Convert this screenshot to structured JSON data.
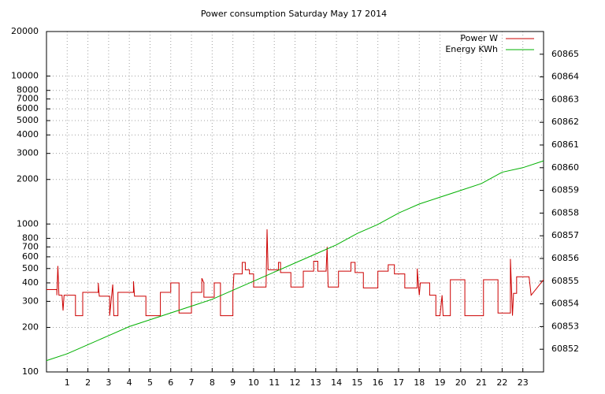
{
  "chart_data": {
    "type": "line",
    "title": "Power consumption Saturday May 17 2014",
    "xlim": [
      0,
      24
    ],
    "xticks": [
      1,
      2,
      3,
      4,
      5,
      6,
      7,
      8,
      9,
      10,
      11,
      12,
      13,
      14,
      15,
      16,
      17,
      18,
      19,
      20,
      21,
      22,
      23
    ],
    "ylim": [
      100,
      20000
    ],
    "ylog": true,
    "yticks": [
      100,
      200,
      300,
      400,
      500,
      600,
      700,
      800,
      1000,
      2000,
      3000,
      4000,
      5000,
      6000,
      7000,
      8000,
      10000,
      20000
    ],
    "y2lim": [
      60851,
      60866
    ],
    "y2ticks": [
      60852,
      60853,
      60854,
      60855,
      60856,
      60857,
      60858,
      60859,
      60860,
      60861,
      60862,
      60863,
      60864,
      60865
    ],
    "grid": true,
    "legend": "top-right",
    "series": [
      {
        "name": "Power W",
        "color": "#cc0000",
        "x": [
          0,
          0.5,
          0.5,
          0.55,
          0.6,
          0.75,
          0.8,
          0.85,
          1.4,
          1.4,
          1.75,
          1.75,
          2.5,
          2.5,
          2.55,
          3.05,
          3.05,
          3.2,
          3.25,
          3.45,
          3.45,
          4.2,
          4.2,
          4.25,
          4.8,
          4.8,
          5.5,
          5.5,
          6.0,
          6.0,
          6.4,
          6.4,
          7.0,
          7.0,
          7.5,
          7.5,
          7.6,
          7.6,
          8.1,
          8.1,
          8.4,
          8.4,
          9.0,
          9.0,
          9.05,
          9.45,
          9.45,
          9.6,
          9.6,
          9.8,
          9.8,
          10.0,
          10.0,
          10.6,
          10.65,
          10.7,
          11.2,
          11.2,
          11.3,
          11.3,
          11.8,
          11.8,
          12.4,
          12.4,
          12.9,
          12.9,
          13.1,
          13.1,
          13.5,
          13.55,
          13.6,
          14.1,
          14.1,
          14.7,
          14.7,
          14.9,
          14.9,
          15.3,
          15.3,
          16.0,
          16.0,
          16.5,
          16.5,
          16.8,
          16.8,
          17.3,
          17.3,
          17.9,
          17.9,
          18.0,
          18.05,
          18.5,
          18.5,
          18.8,
          18.8,
          19.0,
          19.1,
          19.15,
          19.5,
          19.5,
          20.2,
          20.2,
          21.1,
          21.1,
          21.8,
          21.8,
          22.4,
          22.4,
          22.5,
          22.55,
          22.7,
          22.7,
          23.3,
          23.4,
          24
        ],
        "values": [
          360,
          360,
          330,
          520,
          330,
          330,
          260,
          330,
          330,
          240,
          240,
          345,
          345,
          400,
          325,
          325,
          240,
          390,
          240,
          240,
          345,
          345,
          410,
          325,
          325,
          240,
          240,
          345,
          345,
          400,
          400,
          250,
          250,
          345,
          345,
          430,
          400,
          320,
          320,
          400,
          400,
          240,
          240,
          340,
          460,
          460,
          550,
          550,
          490,
          490,
          460,
          460,
          375,
          375,
          920,
          490,
          490,
          550,
          550,
          470,
          470,
          375,
          375,
          480,
          480,
          560,
          560,
          480,
          480,
          700,
          375,
          375,
          480,
          480,
          550,
          550,
          470,
          470,
          370,
          370,
          480,
          480,
          530,
          530,
          460,
          460,
          370,
          370,
          500,
          330,
          400,
          400,
          330,
          330,
          240,
          240,
          330,
          240,
          240,
          420,
          420,
          240,
          240,
          420,
          420,
          250,
          250,
          580,
          240,
          340,
          340,
          440,
          440,
          330,
          420
        ]
      },
      {
        "name": "Energy KWh",
        "color": "#00b000",
        "axis": "y2",
        "x": [
          0,
          1,
          2,
          3,
          4,
          5,
          6,
          7,
          8,
          9,
          10,
          11,
          12,
          13,
          14,
          15,
          16,
          17,
          18,
          19,
          20,
          21,
          22,
          23,
          24
        ],
        "values": [
          60851.5,
          60851.8,
          60852.2,
          60852.6,
          60853.0,
          60853.3,
          60853.6,
          60853.9,
          60854.2,
          60854.6,
          60855.0,
          60855.4,
          60855.8,
          60856.2,
          60856.6,
          60857.1,
          60857.5,
          60858.0,
          60858.4,
          60858.7,
          60859.0,
          60859.3,
          60859.8,
          60860.0,
          60860.3
        ]
      }
    ]
  }
}
